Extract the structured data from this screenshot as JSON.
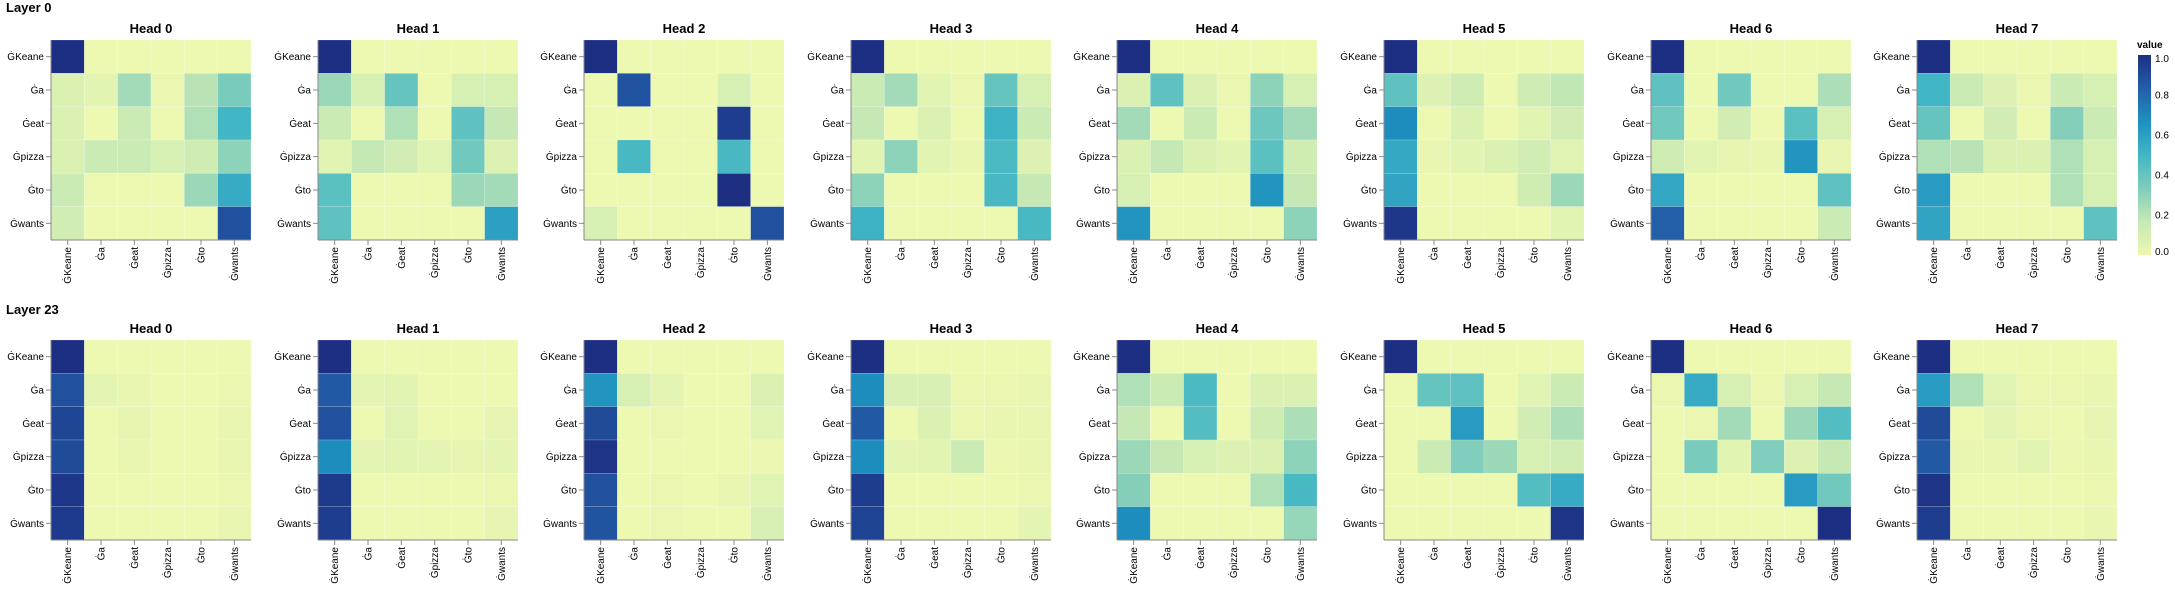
{
  "chart_data": {
    "type": "heatmap",
    "colormap": "YlGnBu",
    "color_stops": [
      "#edf8b1",
      "#c7e9b4",
      "#7fcdbb",
      "#41b6c4",
      "#1d91c0",
      "#225ea8",
      "#1d2f83"
    ],
    "tokens": [
      "ĠKeane",
      "Ġa",
      "Ġeat",
      "Ġpizza",
      "Ġto",
      "Ġwants"
    ],
    "row_labels": [
      "ĠKeane",
      "Ġa",
      "Ġeat",
      "Ġpizza",
      "Ġto",
      "Ġwants"
    ],
    "col_labels": [
      "ĠKeane",
      "Ġa",
      "Ġeat",
      "Ġpizza",
      "Ġto",
      "Ġwants"
    ],
    "legend": {
      "title": "value",
      "ticks": [
        "0.0",
        "0.2",
        "0.4",
        "0.6",
        "0.8",
        "1.0"
      ],
      "tick_values": [
        0,
        0.2,
        0.4,
        0.6,
        0.8,
        1.0
      ],
      "range": [
        0,
        1
      ],
      "placement": "right"
    },
    "layers": [
      {
        "title": "Layer 0",
        "heads": [
          {
            "title": "Head 0",
            "values": [
              [
                1.0,
                0,
                0,
                0,
                0,
                0
              ],
              [
                0.08,
                0.05,
                0.25,
                0.01,
                0.2,
                0.35
              ],
              [
                0.08,
                0.0,
                0.15,
                0.0,
                0.22,
                0.5
              ],
              [
                0.08,
                0.15,
                0.15,
                0.1,
                0.13,
                0.3
              ],
              [
                0.15,
                0,
                0,
                0,
                0.27,
                0.55
              ],
              [
                0.12,
                0,
                0,
                0,
                0,
                0.88
              ]
            ]
          },
          {
            "title": "Head 1",
            "values": [
              [
                1.0,
                0,
                0,
                0,
                0,
                0
              ],
              [
                0.27,
                0.1,
                0.4,
                0,
                0.1,
                0.1
              ],
              [
                0.15,
                0,
                0.22,
                0,
                0.42,
                0.17
              ],
              [
                0.05,
                0.17,
                0.12,
                0.06,
                0.37,
                0.07
              ],
              [
                0.43,
                0,
                0,
                0,
                0.27,
                0.25
              ],
              [
                0.42,
                0,
                0,
                0,
                0,
                0.6
              ]
            ]
          },
          {
            "title": "Head 2",
            "values": [
              [
                1.0,
                0,
                0,
                0,
                0,
                0
              ],
              [
                0,
                0.87,
                0,
                0,
                0.1,
                0
              ],
              [
                0,
                0,
                0,
                0,
                0.95,
                0
              ],
              [
                0,
                0.48,
                0,
                0,
                0.48,
                0
              ],
              [
                0,
                0,
                0,
                0,
                1.0,
                0
              ],
              [
                0.1,
                0,
                0,
                0,
                0,
                0.88
              ]
            ]
          },
          {
            "title": "Head 3",
            "values": [
              [
                1.0,
                0,
                0,
                0,
                0,
                0
              ],
              [
                0.15,
                0.25,
                0.05,
                0.01,
                0.4,
                0.1
              ],
              [
                0.17,
                0,
                0.08,
                0,
                0.52,
                0.15
              ],
              [
                0.05,
                0.3,
                0.05,
                0.02,
                0.47,
                0.07
              ],
              [
                0.3,
                0,
                0,
                0,
                0.48,
                0.17
              ],
              [
                0.52,
                0,
                0,
                0,
                0,
                0.48
              ]
            ]
          },
          {
            "title": "Head 4",
            "values": [
              [
                1.0,
                0,
                0,
                0,
                0,
                0
              ],
              [
                0.08,
                0.42,
                0.08,
                0.01,
                0.3,
                0.1
              ],
              [
                0.25,
                0,
                0.15,
                0,
                0.38,
                0.25
              ],
              [
                0.08,
                0.17,
                0.08,
                0.05,
                0.43,
                0.13
              ],
              [
                0.1,
                0,
                0,
                0,
                0.65,
                0.17
              ],
              [
                0.65,
                0,
                0,
                0,
                0,
                0.3
              ]
            ]
          },
          {
            "title": "Head 5",
            "values": [
              [
                1.0,
                0,
                0,
                0,
                0,
                0
              ],
              [
                0.42,
                0.07,
                0.13,
                0,
                0.13,
                0.18
              ],
              [
                0.68,
                0,
                0.08,
                0,
                0.05,
                0.12
              ],
              [
                0.56,
                0.02,
                0.05,
                0.08,
                0.12,
                0.06
              ],
              [
                0.58,
                0,
                0,
                0,
                0.13,
                0.27
              ],
              [
                0.97,
                0,
                0,
                0,
                0,
                0.05
              ]
            ]
          },
          {
            "title": "Head 6",
            "values": [
              [
                1.0,
                0,
                0,
                0,
                0,
                0
              ],
              [
                0.42,
                0,
                0.37,
                0,
                0,
                0.23
              ],
              [
                0.37,
                0,
                0.12,
                0,
                0.43,
                0.1
              ],
              [
                0.13,
                0.05,
                0.03,
                0.02,
                0.65,
                0.02
              ],
              [
                0.57,
                0,
                0,
                0,
                0,
                0.42
              ],
              [
                0.83,
                0,
                0,
                0,
                0,
                0.15
              ]
            ]
          },
          {
            "title": "Head 7",
            "values": [
              [
                1.0,
                0,
                0,
                0,
                0,
                0
              ],
              [
                0.5,
                0.15,
                0.07,
                0.01,
                0.15,
                0.1
              ],
              [
                0.4,
                0,
                0.12,
                0,
                0.32,
                0.15
              ],
              [
                0.22,
                0.2,
                0.08,
                0.08,
                0.22,
                0.1
              ],
              [
                0.62,
                0,
                0,
                0,
                0.22,
                0.1
              ],
              [
                0.58,
                0,
                0,
                0,
                0,
                0.42
              ]
            ]
          }
        ]
      },
      {
        "title": "Layer 23",
        "heads": [
          {
            "title": "Head 0",
            "values": [
              [
                1.0,
                0,
                0,
                0,
                0,
                0
              ],
              [
                0.88,
                0.04,
                0.02,
                0,
                0,
                0.01
              ],
              [
                0.92,
                0,
                0.03,
                0,
                0,
                0.02
              ],
              [
                0.9,
                0,
                0.02,
                0,
                0,
                0.02
              ],
              [
                0.97,
                0,
                0,
                0,
                0,
                0.01
              ],
              [
                0.96,
                0,
                0,
                0,
                0,
                0.02
              ]
            ]
          },
          {
            "title": "Head 1",
            "values": [
              [
                1.0,
                0,
                0,
                0,
                0,
                0
              ],
              [
                0.85,
                0.04,
                0.05,
                0,
                0,
                0
              ],
              [
                0.88,
                0,
                0.06,
                0,
                0,
                0.03
              ],
              [
                0.68,
                0.04,
                0.05,
                0.04,
                0.03,
                0.04
              ],
              [
                0.96,
                0,
                0,
                0,
                0,
                0.01
              ],
              [
                0.95,
                0,
                0,
                0,
                0,
                0.03
              ]
            ]
          },
          {
            "title": "Head 2",
            "values": [
              [
                1.0,
                0,
                0,
                0,
                0,
                0
              ],
              [
                0.65,
                0.1,
                0.04,
                0,
                0,
                0.08
              ],
              [
                0.9,
                0,
                0.01,
                0,
                0,
                0.06
              ],
              [
                0.98,
                0,
                0,
                0,
                0,
                0.01
              ],
              [
                0.88,
                0,
                0.01,
                0,
                0.02,
                0.06
              ],
              [
                0.87,
                0,
                0.01,
                0,
                0,
                0.09
              ]
            ]
          },
          {
            "title": "Head 3",
            "values": [
              [
                1.0,
                0,
                0,
                0,
                0,
                0
              ],
              [
                0.68,
                0.09,
                0.09,
                0.01,
                0.01,
                0.02
              ],
              [
                0.85,
                0,
                0.08,
                0.01,
                0.02,
                0.02
              ],
              [
                0.68,
                0.04,
                0.05,
                0.15,
                0.01,
                0.02
              ],
              [
                0.95,
                0,
                0,
                0,
                0,
                0.01
              ],
              [
                0.93,
                0,
                0,
                0,
                0,
                0.04
              ]
            ]
          },
          {
            "title": "Head 4",
            "values": [
              [
                1.0,
                0,
                0,
                0,
                0,
                0
              ],
              [
                0.22,
                0.15,
                0.47,
                0,
                0.08,
                0.08
              ],
              [
                0.17,
                0,
                0.45,
                0,
                0.13,
                0.23
              ],
              [
                0.27,
                0.17,
                0.1,
                0.07,
                0.08,
                0.3
              ],
              [
                0.32,
                0,
                0,
                0,
                0.22,
                0.48
              ],
              [
                0.68,
                0,
                0,
                0,
                0,
                0.28
              ]
            ]
          },
          {
            "title": "Head 5",
            "values": [
              [
                1.0,
                0,
                0,
                0,
                0,
                0
              ],
              [
                0,
                0.4,
                0.42,
                0,
                0.06,
                0.15
              ],
              [
                0,
                0,
                0.62,
                0,
                0.12,
                0.23
              ],
              [
                0,
                0.15,
                0.33,
                0.27,
                0.1,
                0.12
              ],
              [
                0,
                0,
                0,
                0,
                0.45,
                0.55
              ],
              [
                0,
                0,
                0,
                0,
                0,
                0.98
              ]
            ]
          },
          {
            "title": "Head 6",
            "values": [
              [
                1.0,
                0,
                0,
                0,
                0,
                0
              ],
              [
                0.01,
                0.55,
                0.1,
                0.01,
                0.1,
                0.17
              ],
              [
                0,
                0.01,
                0.25,
                0,
                0.27,
                0.45
              ],
              [
                0,
                0.35,
                0.05,
                0.33,
                0.07,
                0.17
              ],
              [
                0,
                0,
                0,
                0,
                0.62,
                0.37
              ],
              [
                0,
                0,
                0,
                0,
                0,
                1.0
              ]
            ]
          },
          {
            "title": "Head 7",
            "values": [
              [
                1.0,
                0,
                0,
                0,
                0,
                0
              ],
              [
                0.62,
                0.22,
                0.06,
                0.01,
                0.01,
                0.02
              ],
              [
                0.9,
                0,
                0.04,
                0.01,
                0,
                0.03
              ],
              [
                0.85,
                0.02,
                0.02,
                0.05,
                0.01,
                0.02
              ],
              [
                0.98,
                0,
                0,
                0,
                0,
                0.01
              ],
              [
                0.95,
                0,
                0,
                0,
                0,
                0.02
              ]
            ]
          }
        ]
      }
    ]
  }
}
